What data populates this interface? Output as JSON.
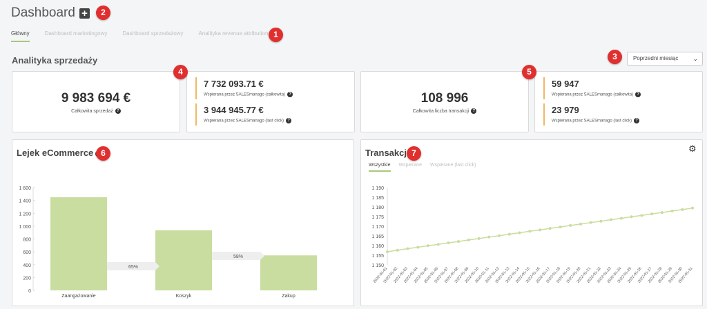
{
  "header": {
    "title": "Dashboard",
    "add_icon": "plus-square-icon",
    "add_light_icon": "plus-icon"
  },
  "badges": [
    "1",
    "2",
    "3",
    "4",
    "5",
    "6",
    "7"
  ],
  "tabs": [
    {
      "label": "Główny",
      "active": true
    },
    {
      "label": "Dashboard marketingowy",
      "active": false
    },
    {
      "label": "Dashboard sprzedażowy",
      "active": false
    },
    {
      "label": "Analityka revenue attribution",
      "active": false
    }
  ],
  "section": {
    "title": "Analityka sprzedaży"
  },
  "period_select": {
    "value": "Poprzedni miesiąc"
  },
  "kpi": {
    "sales_total": {
      "value": "9 983 694 €",
      "label": "Całkowita sprzedaż"
    },
    "sales_split": [
      {
        "value": "7 732 093.71 €",
        "label": "Wspierana przez SALESmanago (całkowita)"
      },
      {
        "value": "3 944 945.77 €",
        "label": "Wspierana przez SALESmanago (last click)"
      }
    ],
    "tx_total": {
      "value": "108 996",
      "label": "Całkowita liczba transakcji"
    },
    "tx_split": [
      {
        "value": "59 947",
        "label": "Wspierana przez SALESmanago (całkowita)"
      },
      {
        "value": "23 979",
        "label": "Wspierana przez SALESmanago (last click)"
      }
    ]
  },
  "funnel": {
    "title": "Lejek eCommerce"
  },
  "transactions": {
    "title": "Transakcje",
    "tabs": [
      {
        "label": "Wszystkie",
        "active": true
      },
      {
        "label": "Wspierane",
        "active": false
      },
      {
        "label": "Wspierane (last click)",
        "active": false
      }
    ],
    "settings_icon": "gear-icon"
  },
  "chart_data": [
    {
      "type": "bar",
      "categories": [
        "Zaangażowanie",
        "Koszyk",
        "Zakup"
      ],
      "values": [
        1450,
        935,
        545
      ],
      "ylim": [
        0,
        1600
      ],
      "yticks": [
        0,
        200,
        400,
        600,
        800,
        1000,
        1200,
        1400,
        1600
      ],
      "ytick_labels": [
        "0",
        "200",
        "400",
        "600",
        "800",
        "1 000",
        "1 200",
        "1 400",
        "1 600"
      ],
      "conversions": [
        "65%",
        "58%"
      ],
      "color": "#c8dd9f"
    },
    {
      "type": "line",
      "x": [
        "2022-01-01",
        "2022-01-02",
        "2022-01-03",
        "2022-01-04",
        "2022-01-05",
        "2022-01-06",
        "2022-01-07",
        "2022-01-08",
        "2022-01-09",
        "2022-01-10",
        "2022-01-11",
        "2022-01-12",
        "2022-01-13",
        "2022-01-14",
        "2022-01-15",
        "2022-01-16",
        "2022-01-17",
        "2022-01-18",
        "2022-01-19",
        "2022-01-20",
        "2022-01-21",
        "2022-01-22",
        "2022-01-23",
        "2022-01-24",
        "2022-01-25",
        "2022-01-26",
        "2022-01-27",
        "2022-01-28",
        "2022-01-29",
        "2022-01-30",
        "2022-01-31"
      ],
      "values": [
        1156.8,
        1157.6,
        1158.4,
        1159.1,
        1159.9,
        1160.6,
        1161.4,
        1162.1,
        1162.9,
        1163.6,
        1164.4,
        1165.1,
        1165.9,
        1166.6,
        1167.4,
        1168.1,
        1168.9,
        1169.6,
        1170.4,
        1171.1,
        1171.9,
        1172.6,
        1173.4,
        1174.1,
        1174.9,
        1175.6,
        1176.4,
        1177.1,
        1177.9,
        1178.6,
        1179.4
      ],
      "ylim": [
        1150,
        1190
      ],
      "yticks": [
        1150,
        1155,
        1160,
        1165,
        1170,
        1175,
        1180,
        1185,
        1190
      ],
      "ytick_labels": [
        "1 150",
        "1 155",
        "1 160",
        "1 165",
        "1 170",
        "1 175",
        "1 180",
        "1 185",
        "1 190"
      ],
      "color": "#c8dd9f"
    }
  ]
}
